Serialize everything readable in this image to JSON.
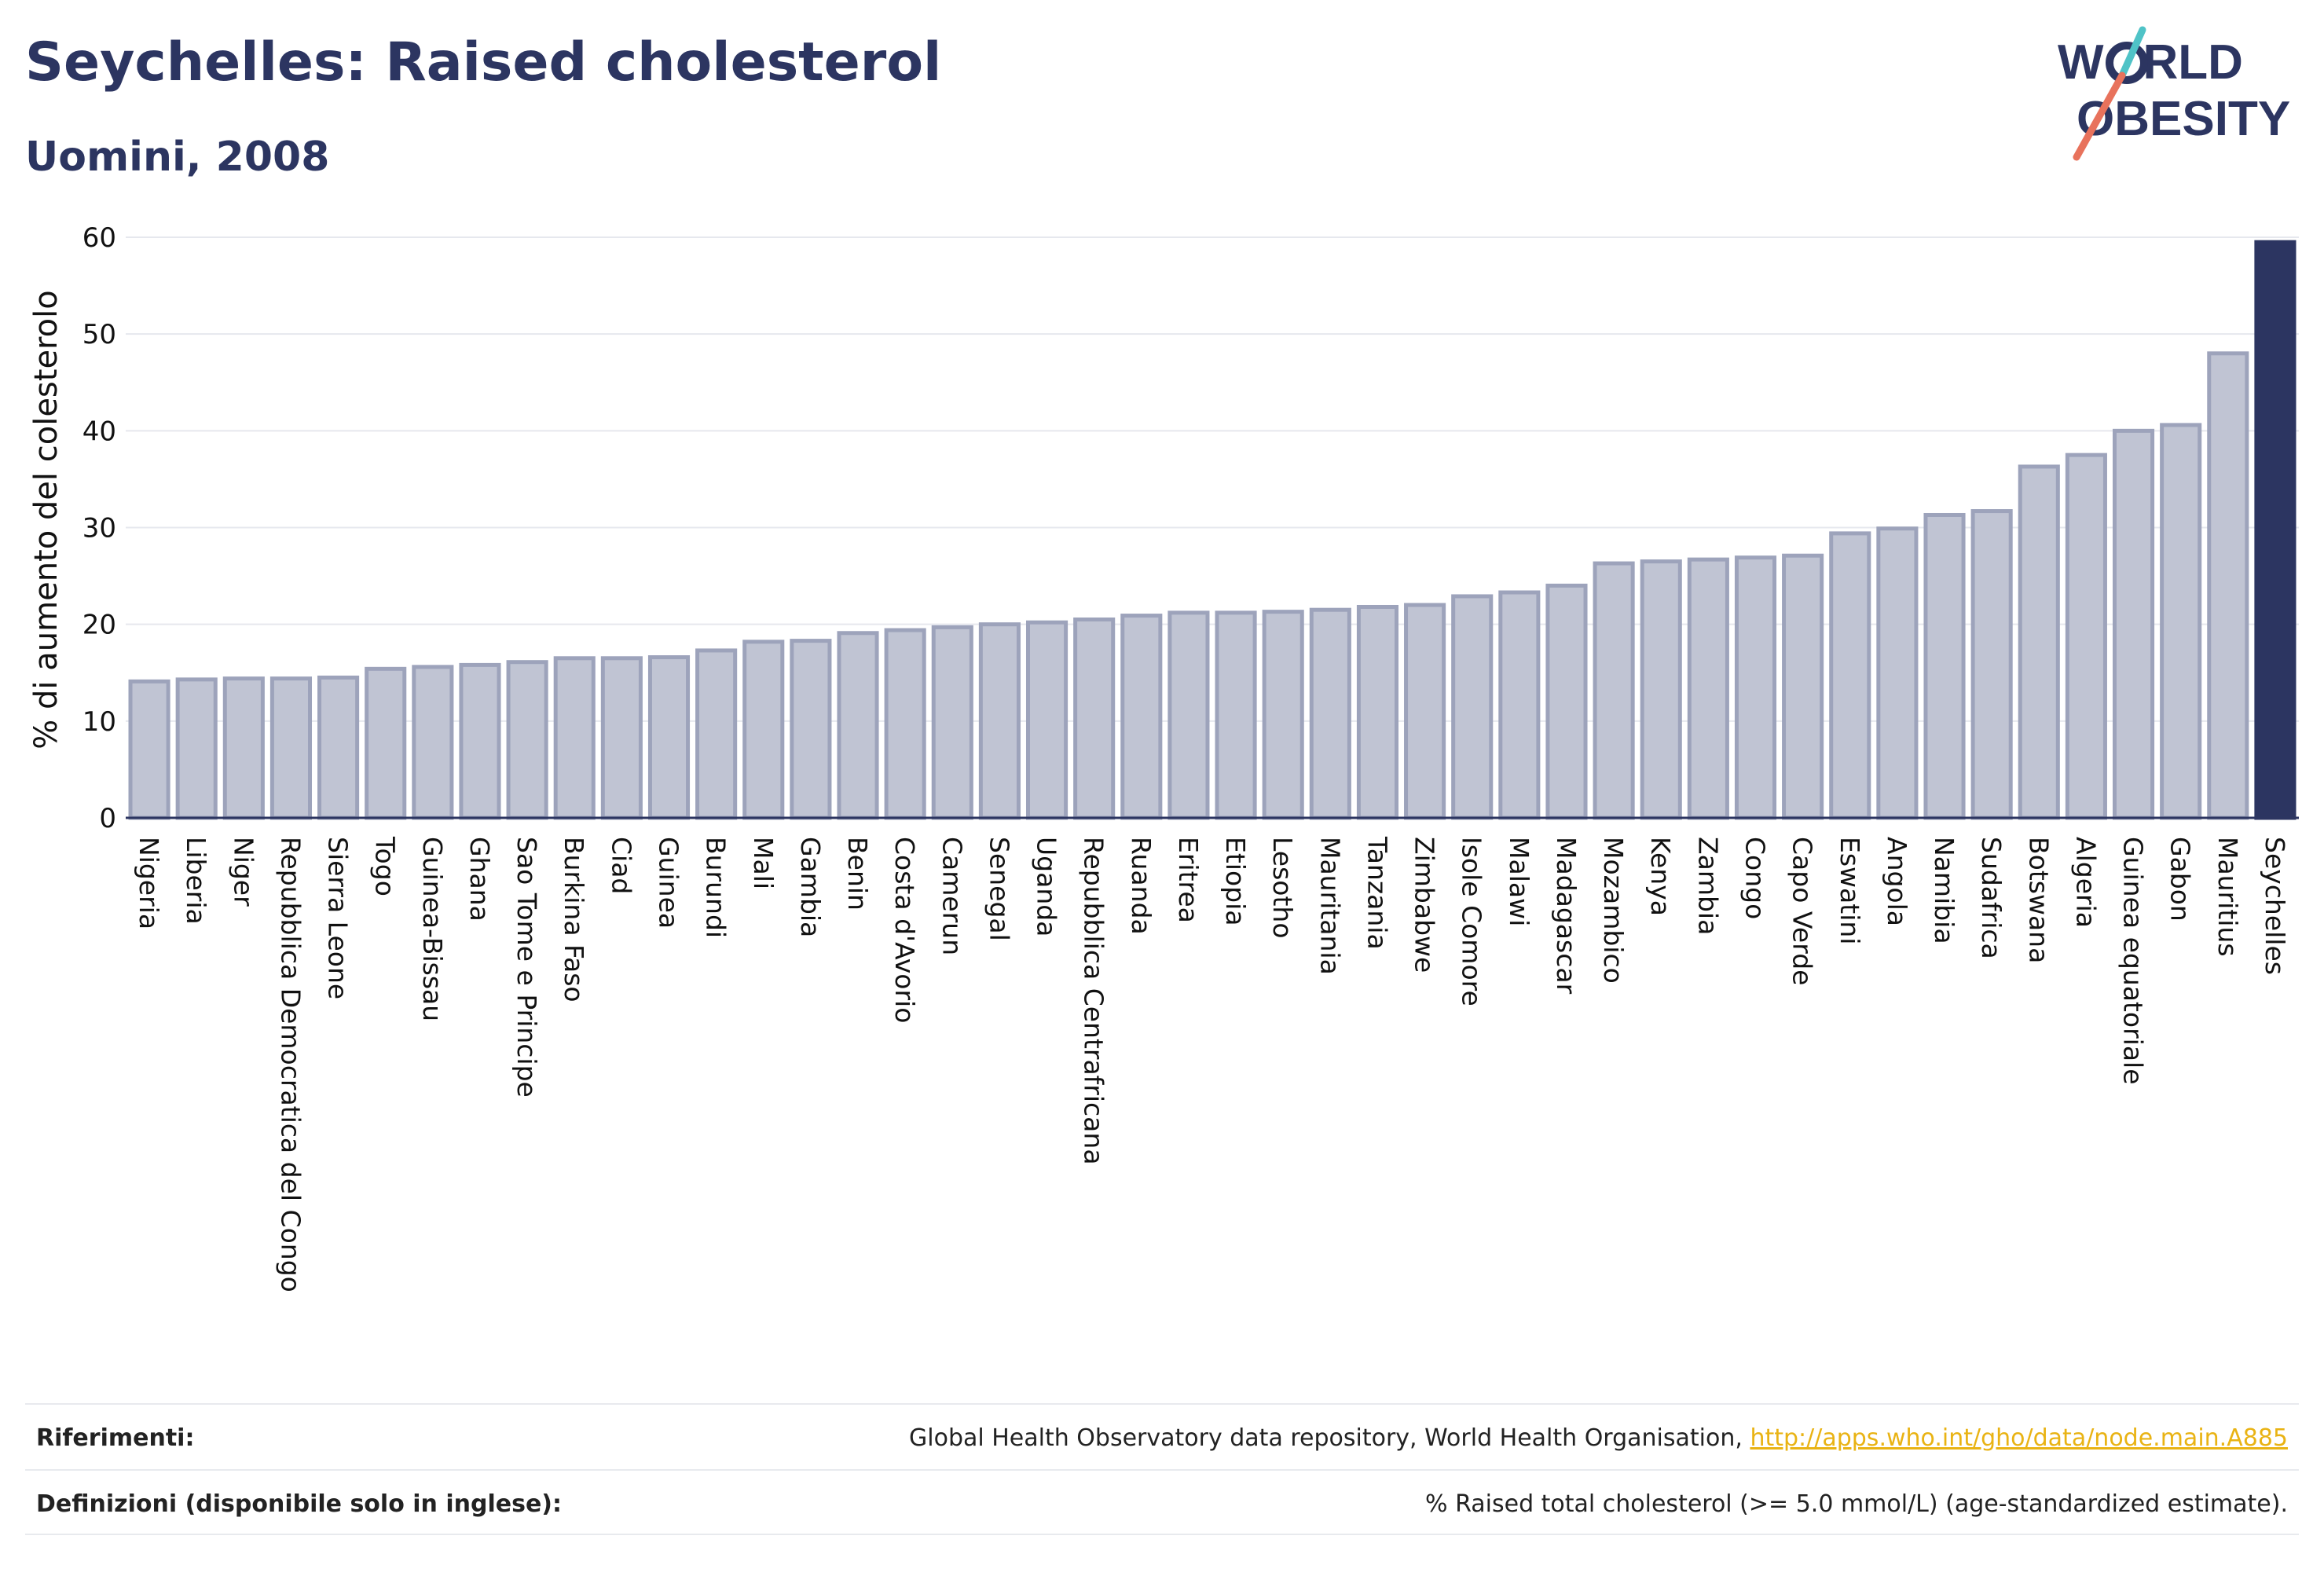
{
  "header": {
    "title": "Seychelles: Raised cholesterol",
    "subtitle": "Uomini, 2008"
  },
  "logo": {
    "line1_a": "W",
    "line1_b": "RLD",
    "line2_a": "O",
    "line2_b": "BESITY",
    "slash_colors": [
      "#4fc3c7",
      "#e8725c"
    ],
    "text_color": "#2c3561"
  },
  "footer": {
    "references_label": "Riferimenti:",
    "references_text": "Global Health Observatory data repository, World Health Organisation, ",
    "references_link": "http://apps.who.int/gho/data/node.main.A885",
    "definitions_label": "Definizioni (disponibile solo in inglese):",
    "definitions_text": "% Raised total cholesterol (>= 5.0 mmol/L) (age-standardized estimate)."
  },
  "colors": {
    "bar_fill": "#c0c4d3",
    "bar_stroke": "#9da3bb",
    "highlight": "#2c3561",
    "grid": "#e6e8ee"
  },
  "chart_data": {
    "type": "bar",
    "title": "Seychelles: Raised cholesterol",
    "subtitle": "Uomini, 2008",
    "xlabel": "",
    "ylabel": "% di aumento del colesterolo",
    "ylim": [
      0,
      60
    ],
    "yticks": [
      0,
      10,
      20,
      30,
      40,
      50,
      60
    ],
    "grid": true,
    "highlight_category": "Seychelles",
    "categories": [
      "Nigeria",
      "Liberia",
      "Niger",
      "Repubblica Democratica del Congo",
      "Sierra Leone",
      "Togo",
      "Guinea-Bissau",
      "Ghana",
      "Sao Tome e Principe",
      "Burkina Faso",
      "Ciad",
      "Guinea",
      "Burundi",
      "Mali",
      "Gambia",
      "Benin",
      "Costa d'Avorio",
      "Camerun",
      "Senegal",
      "Uganda",
      "Repubblica Centrafricana",
      "Ruanda",
      "Eritrea",
      "Etiopia",
      "Lesotho",
      "Mauritania",
      "Tanzania",
      "Zimbabwe",
      "Isole Comore",
      "Malawi",
      "Madagascar",
      "Mozambico",
      "Kenya",
      "Zambia",
      "Congo",
      "Capo Verde",
      "Eswatini",
      "Angola",
      "Namibia",
      "Sudafrica",
      "Botswana",
      "Algeria",
      "Guinea equatoriale",
      "Gabon",
      "Mauritius",
      "Seychelles"
    ],
    "values": [
      14.1,
      14.3,
      14.4,
      14.4,
      14.5,
      15.4,
      15.6,
      15.8,
      16.1,
      16.5,
      16.5,
      16.6,
      17.3,
      18.2,
      18.3,
      19.1,
      19.4,
      19.7,
      20.0,
      20.2,
      20.5,
      20.9,
      21.2,
      21.2,
      21.3,
      21.5,
      21.8,
      22.0,
      22.9,
      23.3,
      24.0,
      26.3,
      26.5,
      26.7,
      26.9,
      27.1,
      29.4,
      29.9,
      31.3,
      31.7,
      36.3,
      37.5,
      40.0,
      40.6,
      48.0,
      59.5
    ]
  }
}
